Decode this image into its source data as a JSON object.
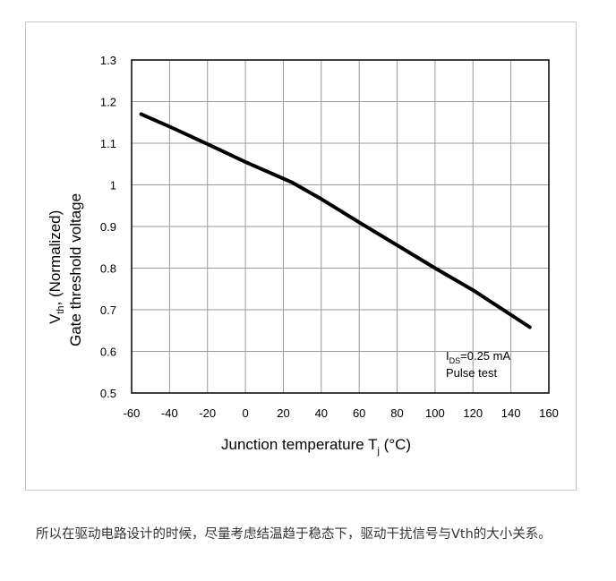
{
  "chart_data": {
    "type": "line",
    "title": "",
    "xlabel_main": "Junction temperature T",
    "xlabel_sub": "j",
    "xlabel_unit": " (°C)",
    "ylabel_top_main": "V",
    "ylabel_top_sub": "th",
    "ylabel_top_rest": ", (Normalized)",
    "ylabel_bottom": "Gate threshold voltage",
    "xlim": [
      -60,
      160
    ],
    "ylim": [
      0.5,
      1.3
    ],
    "x_ticks": [
      -60,
      -40,
      -20,
      0,
      20,
      40,
      60,
      80,
      100,
      120,
      140,
      160
    ],
    "y_ticks": [
      0.5,
      0.6,
      0.7,
      0.8,
      0.9,
      1,
      1.1,
      1.2,
      1.3
    ],
    "grid": true,
    "annotation": {
      "line1_main": "I",
      "line1_sub": "DS",
      "line1_rest": "=0.25 mA",
      "line2": "Pulse test"
    },
    "series": [
      {
        "x": [
          -55,
          -40,
          -20,
          0,
          20,
          25,
          40,
          60,
          80,
          100,
          120,
          150
        ],
        "y": [
          1.17,
          1.14,
          1.098,
          1.055,
          1.015,
          1.005,
          0.966,
          0.91,
          0.855,
          0.8,
          0.747,
          0.658
        ]
      }
    ]
  },
  "caption": "所以在驱动电路设计的时候，尽量考虑结温趋于稳态下，驱动干扰信号与Vth的大小关系。"
}
